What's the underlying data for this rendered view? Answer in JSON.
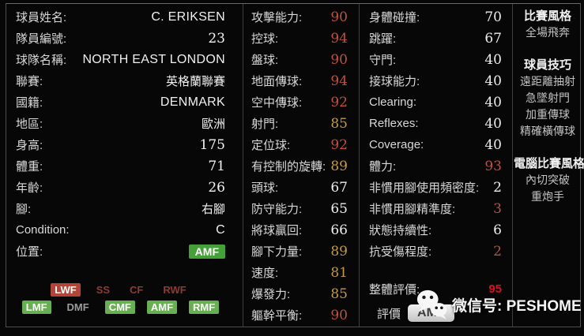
{
  "player": {
    "info": [
      {
        "label": "球員姓名:",
        "value": "C. ERIKSEN"
      },
      {
        "label": "隊員編號:",
        "value": "23"
      },
      {
        "label": "球隊名稱:",
        "value": "NORTH EAST LONDON"
      },
      {
        "label": "聯賽:",
        "value": "英格蘭聯賽"
      },
      {
        "label": "國籍:",
        "value": "DENMARK"
      },
      {
        "label": "地區:",
        "value": "歐洲"
      },
      {
        "label": "身高:",
        "value": "175"
      },
      {
        "label": "體重:",
        "value": "71"
      },
      {
        "label": "年齡:",
        "value": "26"
      },
      {
        "label": "腳:",
        "value": "右腳"
      },
      {
        "label": "Condition:",
        "value": "C"
      },
      {
        "label": "位置:",
        "value": "AMF",
        "badge": "green"
      }
    ],
    "positions": {
      "row1": [
        {
          "label": "LWF",
          "style": "badge-red"
        },
        {
          "label": "SS",
          "style": "text-darkred"
        },
        {
          "label": "CF",
          "style": "text-darkred"
        },
        {
          "label": "RWF",
          "style": "text-darkred"
        }
      ],
      "row2": [
        {
          "label": "LMF",
          "style": "badge-green"
        },
        {
          "label": "DMF",
          "style": "text-gray"
        },
        {
          "label": "CMF",
          "style": "badge-green"
        },
        {
          "label": "AMF",
          "style": "badge-green"
        },
        {
          "label": "RMF",
          "style": "badge-green"
        }
      ]
    }
  },
  "stats_attack": [
    {
      "label": "攻擊能力:",
      "value": "90",
      "tier": "red"
    },
    {
      "label": "控球:",
      "value": "94",
      "tier": "red"
    },
    {
      "label": "盤球:",
      "value": "90",
      "tier": "red"
    },
    {
      "label": "地面傳球:",
      "value": "94",
      "tier": "red"
    },
    {
      "label": "空中傳球:",
      "value": "92",
      "tier": "red"
    },
    {
      "label": "射門:",
      "value": "85",
      "tier": "gold"
    },
    {
      "label": "定位球:",
      "value": "92",
      "tier": "red"
    },
    {
      "label": "有控制的旋轉:",
      "value": "89",
      "tier": "gold"
    },
    {
      "label": "頭球:",
      "value": "67",
      "tier": "white"
    },
    {
      "label": "防守能力:",
      "value": "65",
      "tier": "white"
    },
    {
      "label": "將球贏回:",
      "value": "66",
      "tier": "white"
    },
    {
      "label": "腳下力量:",
      "value": "89",
      "tier": "gold"
    },
    {
      "label": "速度:",
      "value": "81",
      "tier": "gold"
    },
    {
      "label": "爆發力:",
      "value": "85",
      "tier": "gold"
    },
    {
      "label": "軀幹平衡:",
      "value": "90",
      "tier": "red"
    }
  ],
  "stats_physical": [
    {
      "label": "身體碰撞:",
      "value": "70",
      "tier": "white"
    },
    {
      "label": "跳躍:",
      "value": "67",
      "tier": "white"
    },
    {
      "label": "守門:",
      "value": "40",
      "tier": "white"
    },
    {
      "label": "接球能力:",
      "value": "40",
      "tier": "white"
    },
    {
      "label": "Clearing:",
      "value": "40",
      "tier": "white"
    },
    {
      "label": "Reflexes:",
      "value": "40",
      "tier": "white"
    },
    {
      "label": "Coverage:",
      "value": "40",
      "tier": "white"
    },
    {
      "label": "體力:",
      "value": "93",
      "tier": "red"
    },
    {
      "label": "非慣用腳使用頻密度:",
      "value": "2",
      "tier": "white"
    },
    {
      "label": "非慣用腳精準度:",
      "value": "3",
      "tier": "dim"
    },
    {
      "label": "狀態持續性:",
      "value": "6",
      "tier": "white"
    },
    {
      "label": "抗受傷程度:",
      "value": "2",
      "tier": "dim"
    }
  ],
  "overall": {
    "label": "整體評價:",
    "value": "95"
  },
  "rating_position": {
    "label": "評價",
    "value": "AMF"
  },
  "styles_col": {
    "sections": [
      {
        "title": "比賽風格",
        "items": [
          "全場飛奔"
        ]
      },
      {
        "title": "球員技巧",
        "items": [
          "遠距離抽射",
          "急墜射門",
          "加重傳球",
          "精確橫傳球"
        ]
      },
      {
        "title": "電腦比賽風格",
        "items": [
          "內切突破",
          "重炮手"
        ]
      }
    ]
  },
  "watermark": {
    "text": "微信号: PESHOME",
    "icon": "wechat-icon"
  },
  "colors": {
    "stat_high_red": "#c0503e",
    "stat_mid_gold": "#c19a41",
    "stat_low_white": "#ececec",
    "stat_dim_red": "#a55846",
    "overall_red": "#d0141f",
    "position_badge_green": "#45a03a",
    "grid_badge_green": "#68ae53",
    "grid_badge_red": "#b2453a",
    "grid_text_darkred": "#8e3a33",
    "grid_text_gray": "#9a9a9a"
  }
}
